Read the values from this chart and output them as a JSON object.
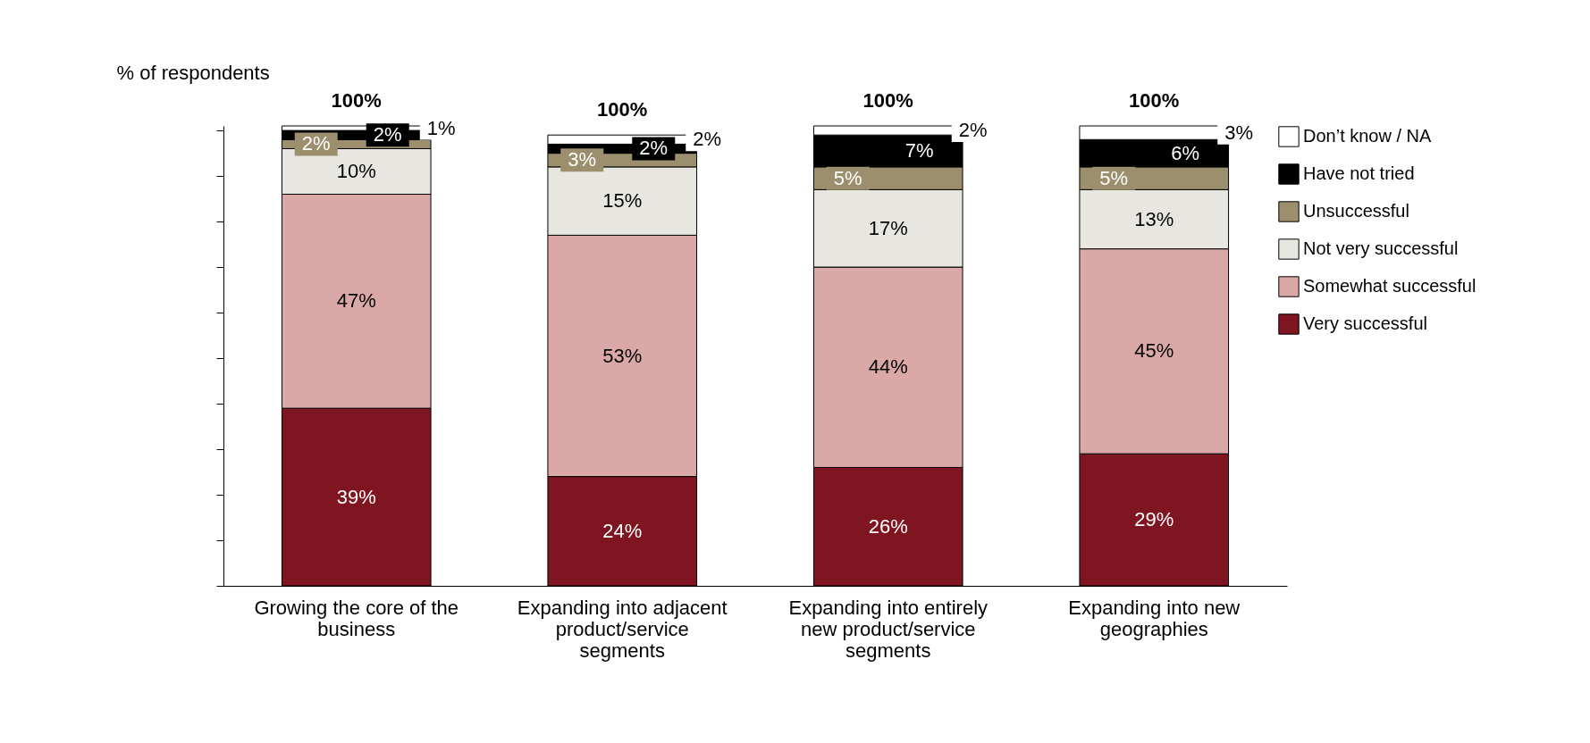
{
  "chart_data": {
    "type": "bar",
    "stacked": true,
    "ylabel": "% of respondents",
    "categories": [
      "Growing the core of the business",
      "Expanding into adjacent product/service segments",
      "Expanding into entirely new product/service segments",
      "Expanding into new geographies"
    ],
    "series": [
      {
        "name": "Very successful",
        "color": "#7f1520",
        "values": [
          39,
          24,
          26,
          29
        ],
        "value_labels": [
          "39%",
          "24%",
          "26%",
          "29%"
        ]
      },
      {
        "name": "Somewhat successful",
        "color": "#dba8a8",
        "values": [
          47,
          53,
          44,
          45
        ],
        "value_labels": [
          "47%",
          "53%",
          "44%",
          "45%"
        ]
      },
      {
        "name": "Not very successful",
        "color": "#e8e6e0",
        "values": [
          10,
          15,
          17,
          13
        ],
        "value_labels": [
          "10%",
          "15%",
          "17%",
          "13%"
        ]
      },
      {
        "name": "Unsuccessful",
        "color": "#9c8f6e",
        "values": [
          2,
          3,
          5,
          5
        ],
        "value_labels": [
          "2%",
          "3%",
          "5%",
          "5%"
        ]
      },
      {
        "name": "Have not tried",
        "color": "#000000",
        "values": [
          2,
          2,
          7,
          6
        ],
        "value_labels": [
          "2%",
          "2%",
          "7%",
          "6%"
        ]
      },
      {
        "name": "Don’t know / NA",
        "color": "#ffffff",
        "values": [
          1,
          2,
          2,
          3
        ],
        "value_labels": [
          "1%",
          "2%",
          "2%",
          "3%"
        ]
      }
    ],
    "tick_labels": "x",
    "totals": [
      "100%",
      "100%",
      "100%",
      "100%"
    ],
    "grid": false,
    "legend": "right"
  }
}
